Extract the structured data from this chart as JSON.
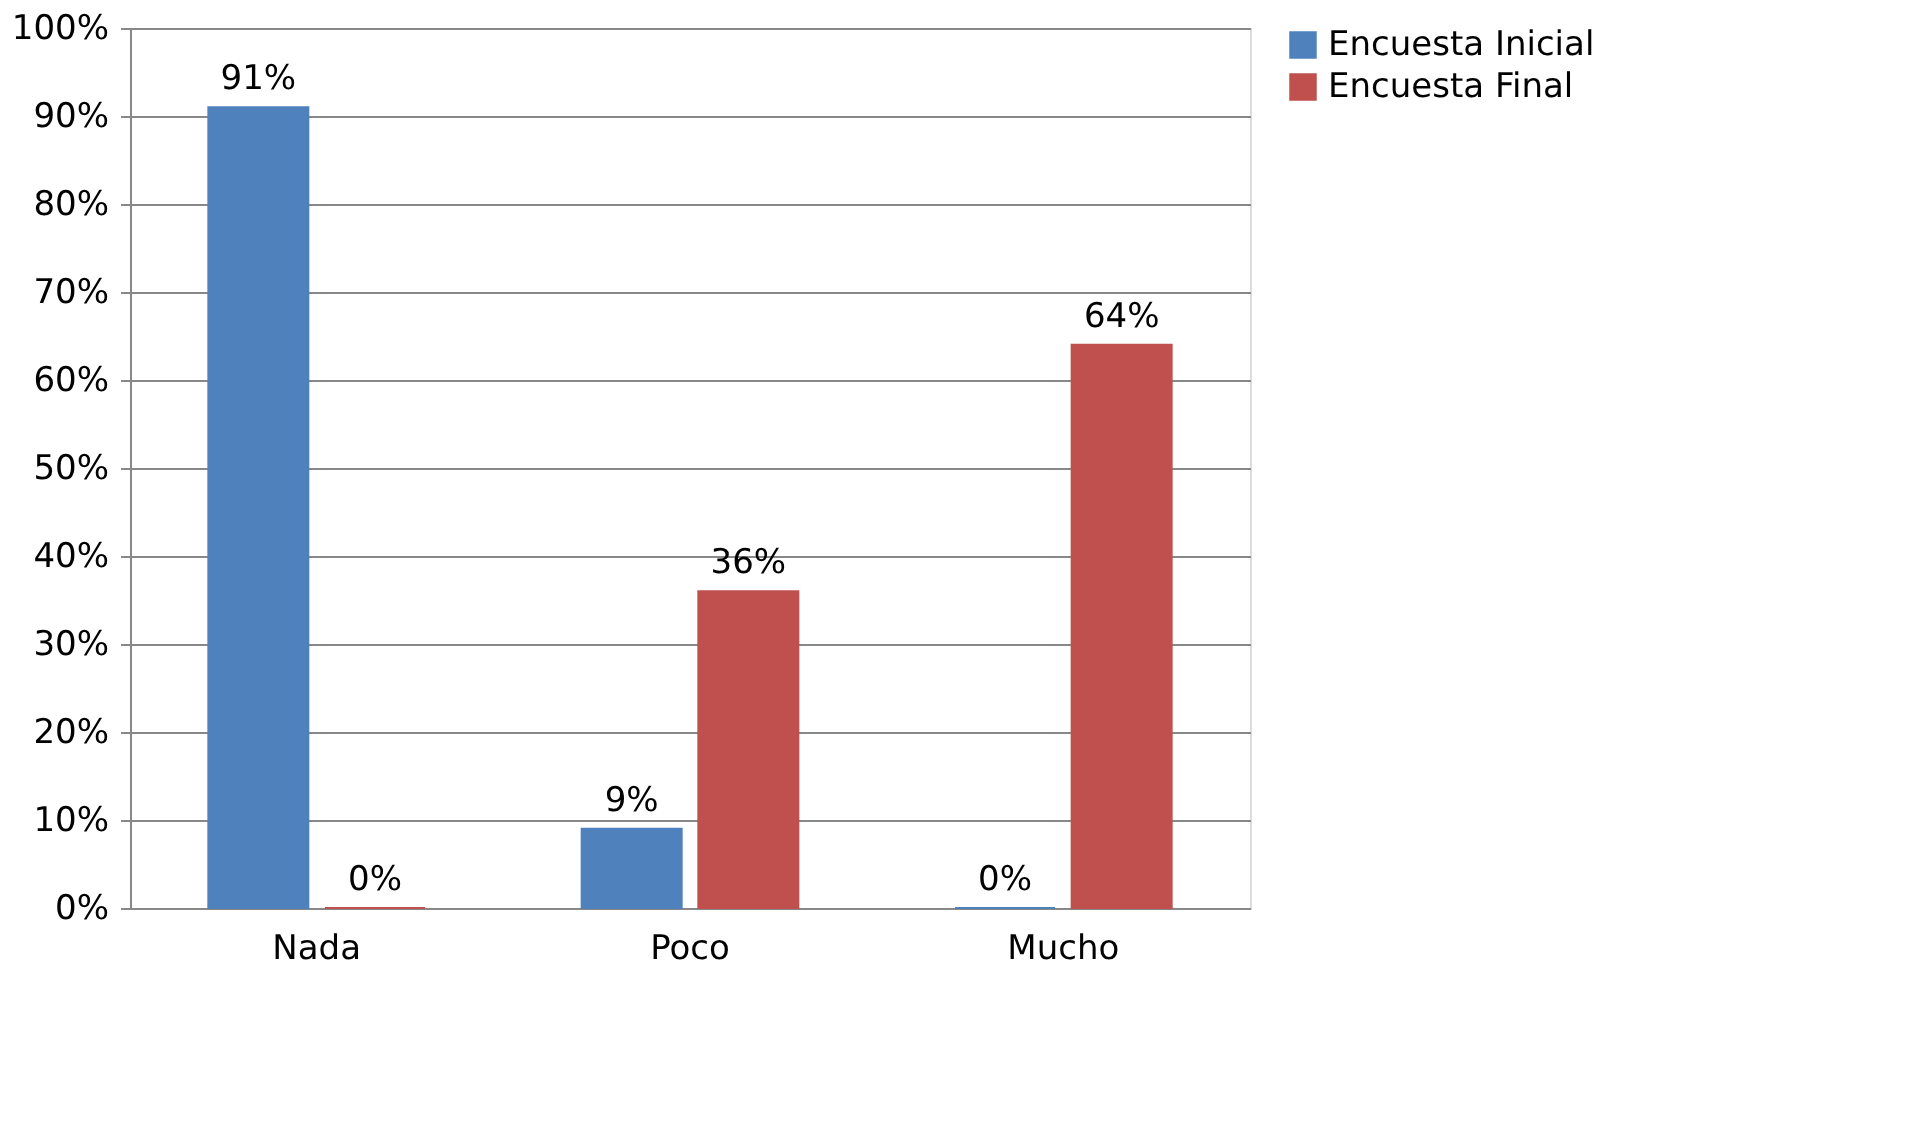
{
  "chart_data": {
    "type": "bar",
    "categories": [
      "Nada",
      "Poco",
      "Mucho"
    ],
    "series": [
      {
        "name": "Encuesta Inicial",
        "color": "#4f81bd",
        "values": [
          91,
          9,
          0
        ],
        "value_labels": [
          "91%",
          "9%",
          "0%"
        ]
      },
      {
        "name": "Encuesta Final",
        "color": "#c0504d",
        "values": [
          0,
          36,
          64
        ],
        "value_labels": [
          "0%",
          "36%",
          "64%"
        ]
      }
    ],
    "ylim": [
      0,
      100
    ],
    "yticks": [
      {
        "value": 0,
        "label": "0%"
      },
      {
        "value": 10,
        "label": "10%"
      },
      {
        "value": 20,
        "label": "20%"
      },
      {
        "value": 30,
        "label": "30%"
      },
      {
        "value": 40,
        "label": "40%"
      },
      {
        "value": 50,
        "label": "50%"
      },
      {
        "value": 60,
        "label": "60%"
      },
      {
        "value": 70,
        "label": "70%"
      },
      {
        "value": 80,
        "label": "80%"
      },
      {
        "value": 90,
        "label": "90%"
      },
      {
        "value": 100,
        "label": "100%"
      }
    ],
    "grid": "y",
    "legend": "right"
  }
}
